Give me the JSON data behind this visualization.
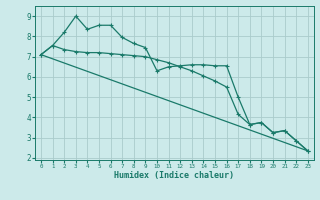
{
  "xlabel": "Humidex (Indice chaleur)",
  "bg_color": "#cceaea",
  "grid_color": "#aacccc",
  "line_color": "#1a7a6a",
  "xlim": [
    -0.5,
    23.5
  ],
  "ylim": [
    1.9,
    9.5
  ],
  "yticks": [
    2,
    3,
    4,
    5,
    6,
    7,
    8,
    9
  ],
  "xticks": [
    0,
    1,
    2,
    3,
    4,
    5,
    6,
    7,
    8,
    9,
    10,
    11,
    12,
    13,
    14,
    15,
    16,
    17,
    18,
    19,
    20,
    21,
    22,
    23
  ],
  "line1_x": [
    0,
    1,
    2,
    3,
    4,
    5,
    6,
    7,
    8,
    9,
    10,
    11,
    12,
    13,
    14,
    15,
    16,
    17,
    18,
    19,
    20,
    21,
    22,
    23
  ],
  "line1_y": [
    7.1,
    7.55,
    8.2,
    9.0,
    8.35,
    8.55,
    8.55,
    7.95,
    7.65,
    7.45,
    6.3,
    6.5,
    6.55,
    6.6,
    6.6,
    6.55,
    6.55,
    5.0,
    3.65,
    3.75,
    3.25,
    3.35,
    2.85,
    2.35
  ],
  "line2_x": [
    0,
    23
  ],
  "line2_y": [
    7.1,
    2.35
  ],
  "line3_x": [
    0,
    1,
    2,
    3,
    4,
    5,
    6,
    7,
    8,
    9,
    10,
    11,
    12,
    13,
    14,
    15,
    16,
    17,
    18,
    19,
    20,
    21,
    22,
    23
  ],
  "line3_y": [
    7.1,
    7.55,
    7.35,
    7.25,
    7.2,
    7.2,
    7.15,
    7.1,
    7.05,
    7.0,
    6.85,
    6.7,
    6.5,
    6.3,
    6.05,
    5.8,
    5.5,
    4.15,
    3.65,
    3.75,
    3.25,
    3.35,
    2.85,
    2.35
  ]
}
